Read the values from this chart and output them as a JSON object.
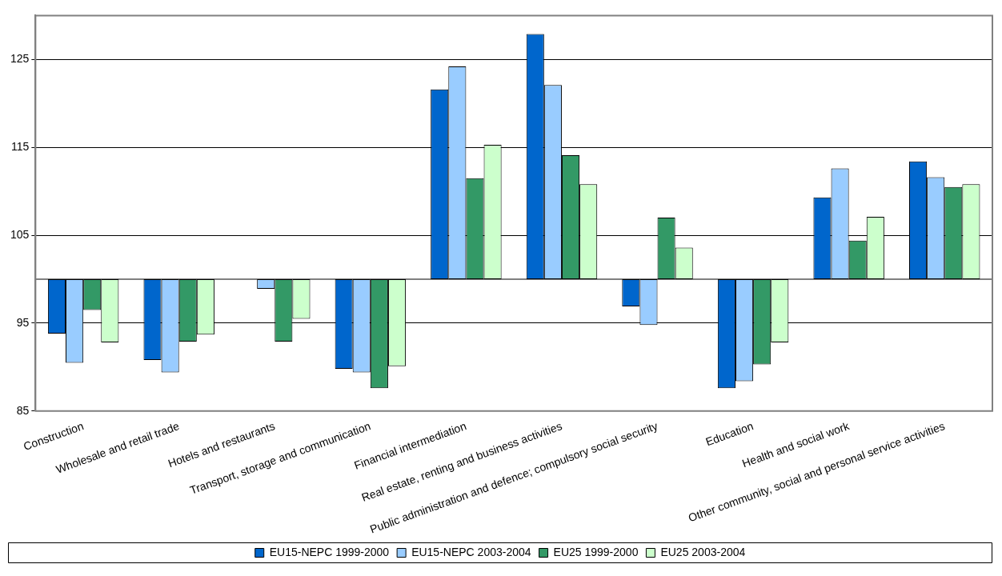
{
  "chart_data": {
    "type": "bar",
    "categories": [
      "Construction",
      "Wholesale and retail trade",
      "Hotels and restaurants",
      "Transport, storage and communication",
      "Financial intermediation",
      "Real estate, renting and business activities",
      "Public administration and defence; compulsory social security",
      "Education",
      "Health and social work",
      "Other community, social and personal service activities"
    ],
    "series": [
      {
        "name": "EU15-NEPC 1999-2000",
        "color": "#0066cc",
        "base": [
          100,
          100,
          null,
          100,
          100,
          100,
          100,
          100,
          100,
          100
        ],
        "values": [
          -6.2,
          -9.2,
          null,
          -10.2,
          21.6,
          27.9,
          -3.1,
          -12.4,
          9.3,
          13.4
        ]
      },
      {
        "name": "EU15-NEPC 2003-2004",
        "color": "#99ccff",
        "base": [
          100,
          100,
          100,
          100,
          100,
          100,
          100,
          100,
          100,
          100
        ],
        "values": [
          -9.5,
          -10.6,
          -1.1,
          -10.6,
          24.2,
          22.1,
          -5.2,
          -11.6,
          12.6,
          11.6
        ]
      },
      {
        "name": "EU25 1999-2000",
        "color": "#339966",
        "base": [
          100,
          100,
          100,
          100,
          100,
          100,
          100,
          100,
          100,
          100
        ],
        "values": [
          -3.5,
          -7.1,
          -7.1,
          -12.4,
          11.5,
          14.1,
          7.0,
          -9.7,
          4.4,
          10.5
        ]
      },
      {
        "name": "EU25 2003-2004",
        "color": "#ccffcc",
        "base": [
          100,
          100,
          100,
          100,
          100,
          100,
          100,
          100,
          100,
          100
        ],
        "values": [
          -7.2,
          -6.3,
          -4.5,
          -9.9,
          15.3,
          10.8,
          3.6,
          -7.2,
          7.1,
          10.8
        ]
      }
    ],
    "ylim": [
      85,
      130
    ],
    "yticks": [
      85,
      95,
      105,
      115,
      125
    ],
    "grid": "y",
    "legend": "bottom",
    "ref_lines": [
      {
        "axis": "y",
        "value": 100,
        "color": "#808080"
      }
    ]
  }
}
